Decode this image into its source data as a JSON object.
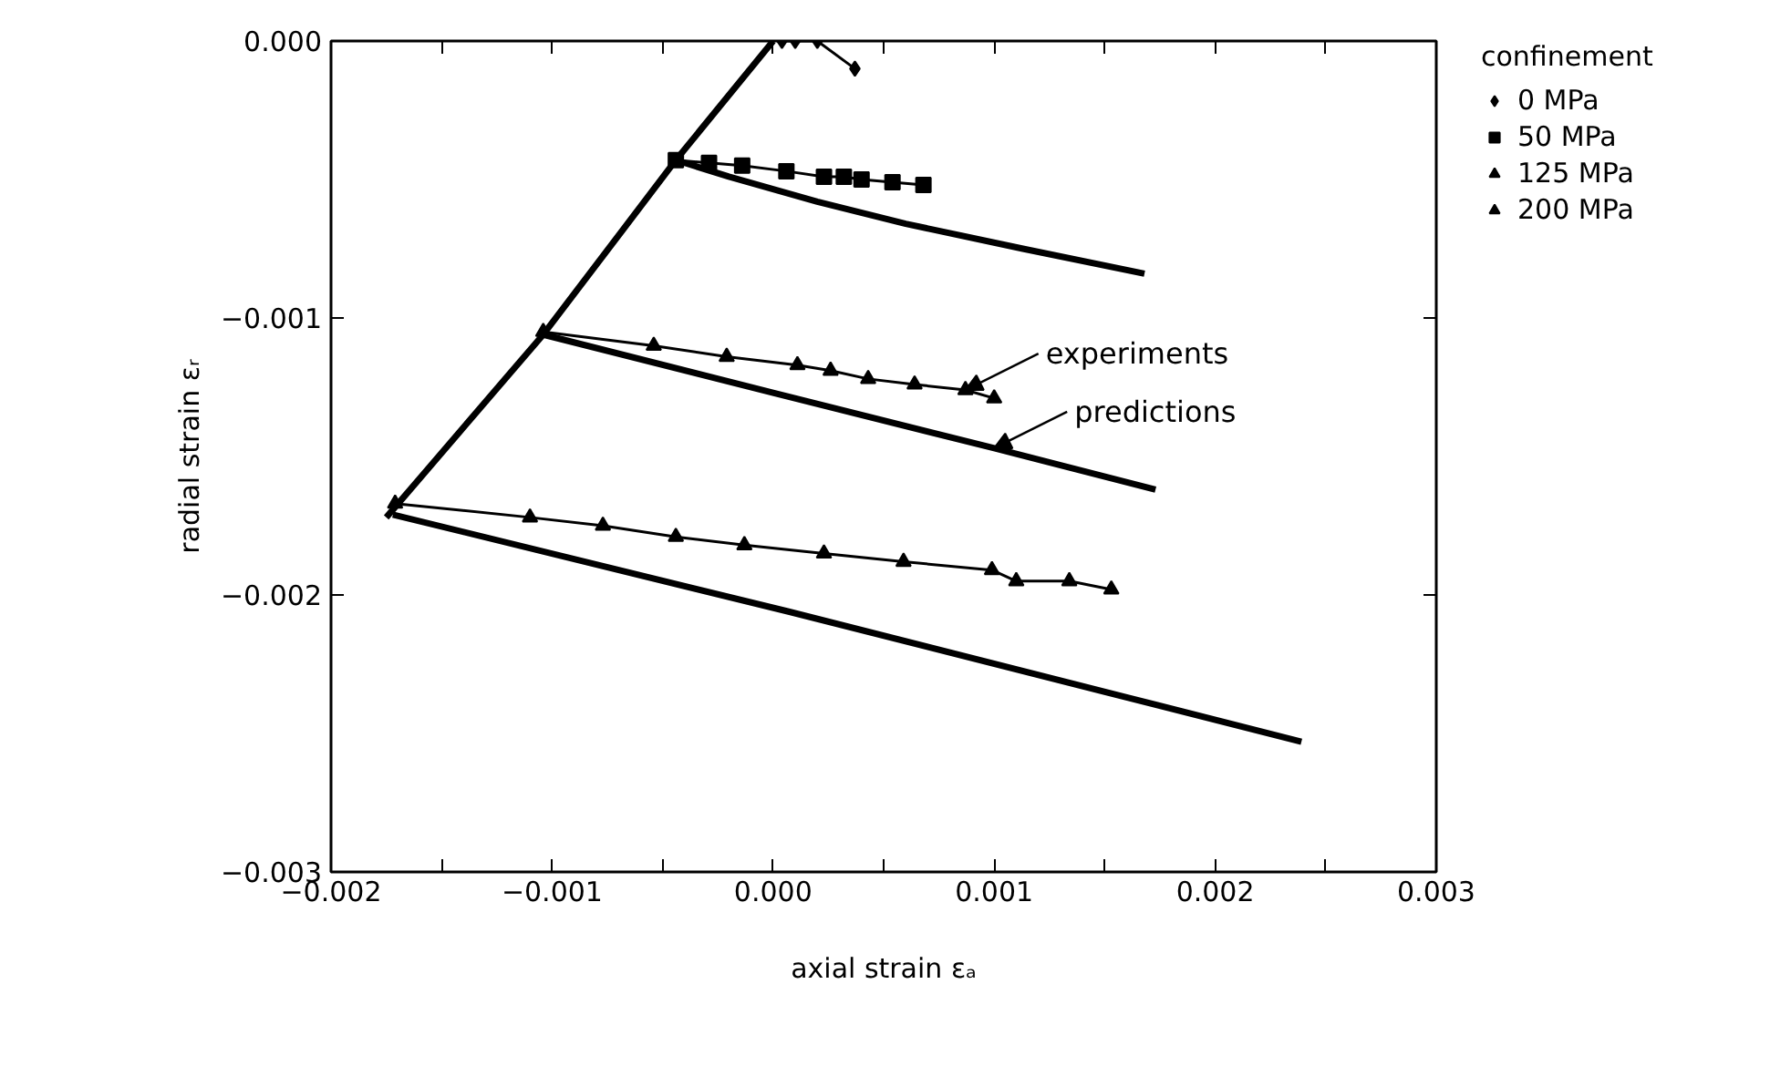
{
  "chart_data": {
    "type": "line",
    "xlabel": "axial strain εₐ",
    "ylabel": "radial strain εᵣ",
    "legend_title": "confinement",
    "legend": "top right",
    "grid": false,
    "xlim": [
      -0.002,
      0.003
    ],
    "ylim": [
      -0.003,
      0.0
    ],
    "xticks": [
      {
        "value": -0.002,
        "label": "−0.002"
      },
      {
        "value": -0.0015,
        "label": null
      },
      {
        "value": -0.001,
        "label": "−0.001"
      },
      {
        "value": -0.0005,
        "label": null
      },
      {
        "value": 0.0,
        "label": "0.000"
      },
      {
        "value": 0.0005,
        "label": null
      },
      {
        "value": 0.001,
        "label": "0.001"
      },
      {
        "value": 0.0015,
        "label": null
      },
      {
        "value": 0.002,
        "label": "0.002"
      },
      {
        "value": 0.0025,
        "label": null
      },
      {
        "value": 0.003,
        "label": "0.003"
      }
    ],
    "yticks": [
      {
        "value": -0.003,
        "label": "−0.003"
      },
      {
        "value": -0.002,
        "label": "−0.002"
      },
      {
        "value": -0.001,
        "label": "−0.001"
      },
      {
        "value": 0.0,
        "label": "0.000"
      }
    ],
    "annotations": [
      {
        "text": "experiments",
        "x": 0.00087,
        "y": -0.00126
      },
      {
        "text": "predictions",
        "x": 0.001,
        "y": -0.00147
      }
    ],
    "series": [
      {
        "color": "#000000",
        "marker": "none",
        "x": [
          0.0,
          -0.00044,
          -0.00104,
          -0.00175
        ],
        "values": [
          0.0,
          -0.00043,
          -0.00106,
          -0.00172
        ]
      },
      {
        "name": "0 MPa",
        "color": "#000000",
        "marker": "diamond",
        "x": [
          4e-05,
          0.0001,
          0.0002,
          0.00037
        ],
        "values": [
          0.0,
          0.0,
          0.0,
          -0.0001
        ]
      },
      {
        "name": "50 MPa",
        "color": "#000000",
        "marker": "square",
        "x": [
          -0.00044,
          -0.00029,
          -0.00014,
          6e-05,
          0.00023,
          0.00032,
          0.0004,
          0.00054,
          0.00068
        ],
        "values": [
          -0.00043,
          -0.00044,
          -0.00045,
          -0.00047,
          -0.00049,
          -0.00049,
          -0.0005,
          -0.00051,
          -0.00052
        ]
      },
      {
        "name": "125 MPa",
        "color": "#000000",
        "marker": "triangle",
        "x": [
          -0.00104,
          -0.00054,
          -0.00021,
          0.00011,
          0.00026,
          0.00043,
          0.00064,
          0.00087,
          0.001
        ],
        "values": [
          -0.00105,
          -0.0011,
          -0.00114,
          -0.00117,
          -0.00119,
          -0.00122,
          -0.00124,
          -0.00126,
          -0.00129
        ]
      },
      {
        "name": "200 MPa",
        "color": "#000000",
        "marker": "triangle",
        "x": [
          -0.00171,
          -0.0011,
          -0.00077,
          -0.00044,
          -0.00013,
          0.00023,
          0.00059,
          0.00099,
          0.0011,
          0.00134,
          0.00153
        ],
        "values": [
          -0.00167,
          -0.00172,
          -0.00175,
          -0.00179,
          -0.00182,
          -0.00185,
          -0.00188,
          -0.00191,
          -0.00195,
          -0.00195,
          -0.00198
        ]
      },
      {
        "color": "#000000",
        "marker": "none",
        "x": [
          -0.00044,
          -0.0002,
          0.0002,
          0.0006,
          0.00113,
          0.00168
        ],
        "values": [
          -0.00043,
          -0.00049,
          -0.00058,
          -0.00066,
          -0.00075,
          -0.00084
        ]
      },
      {
        "color": "#000000",
        "marker": "none",
        "x": [
          -0.00104,
          0.0,
          0.001,
          0.00173
        ],
        "values": [
          -0.00106,
          -0.00127,
          -0.00147,
          -0.00162
        ]
      },
      {
        "color": "#000000",
        "marker": "none",
        "x": [
          -0.00172,
          7e-05,
          0.00239
        ],
        "values": [
          -0.00171,
          -0.00206,
          -0.00253
        ]
      }
    ]
  }
}
